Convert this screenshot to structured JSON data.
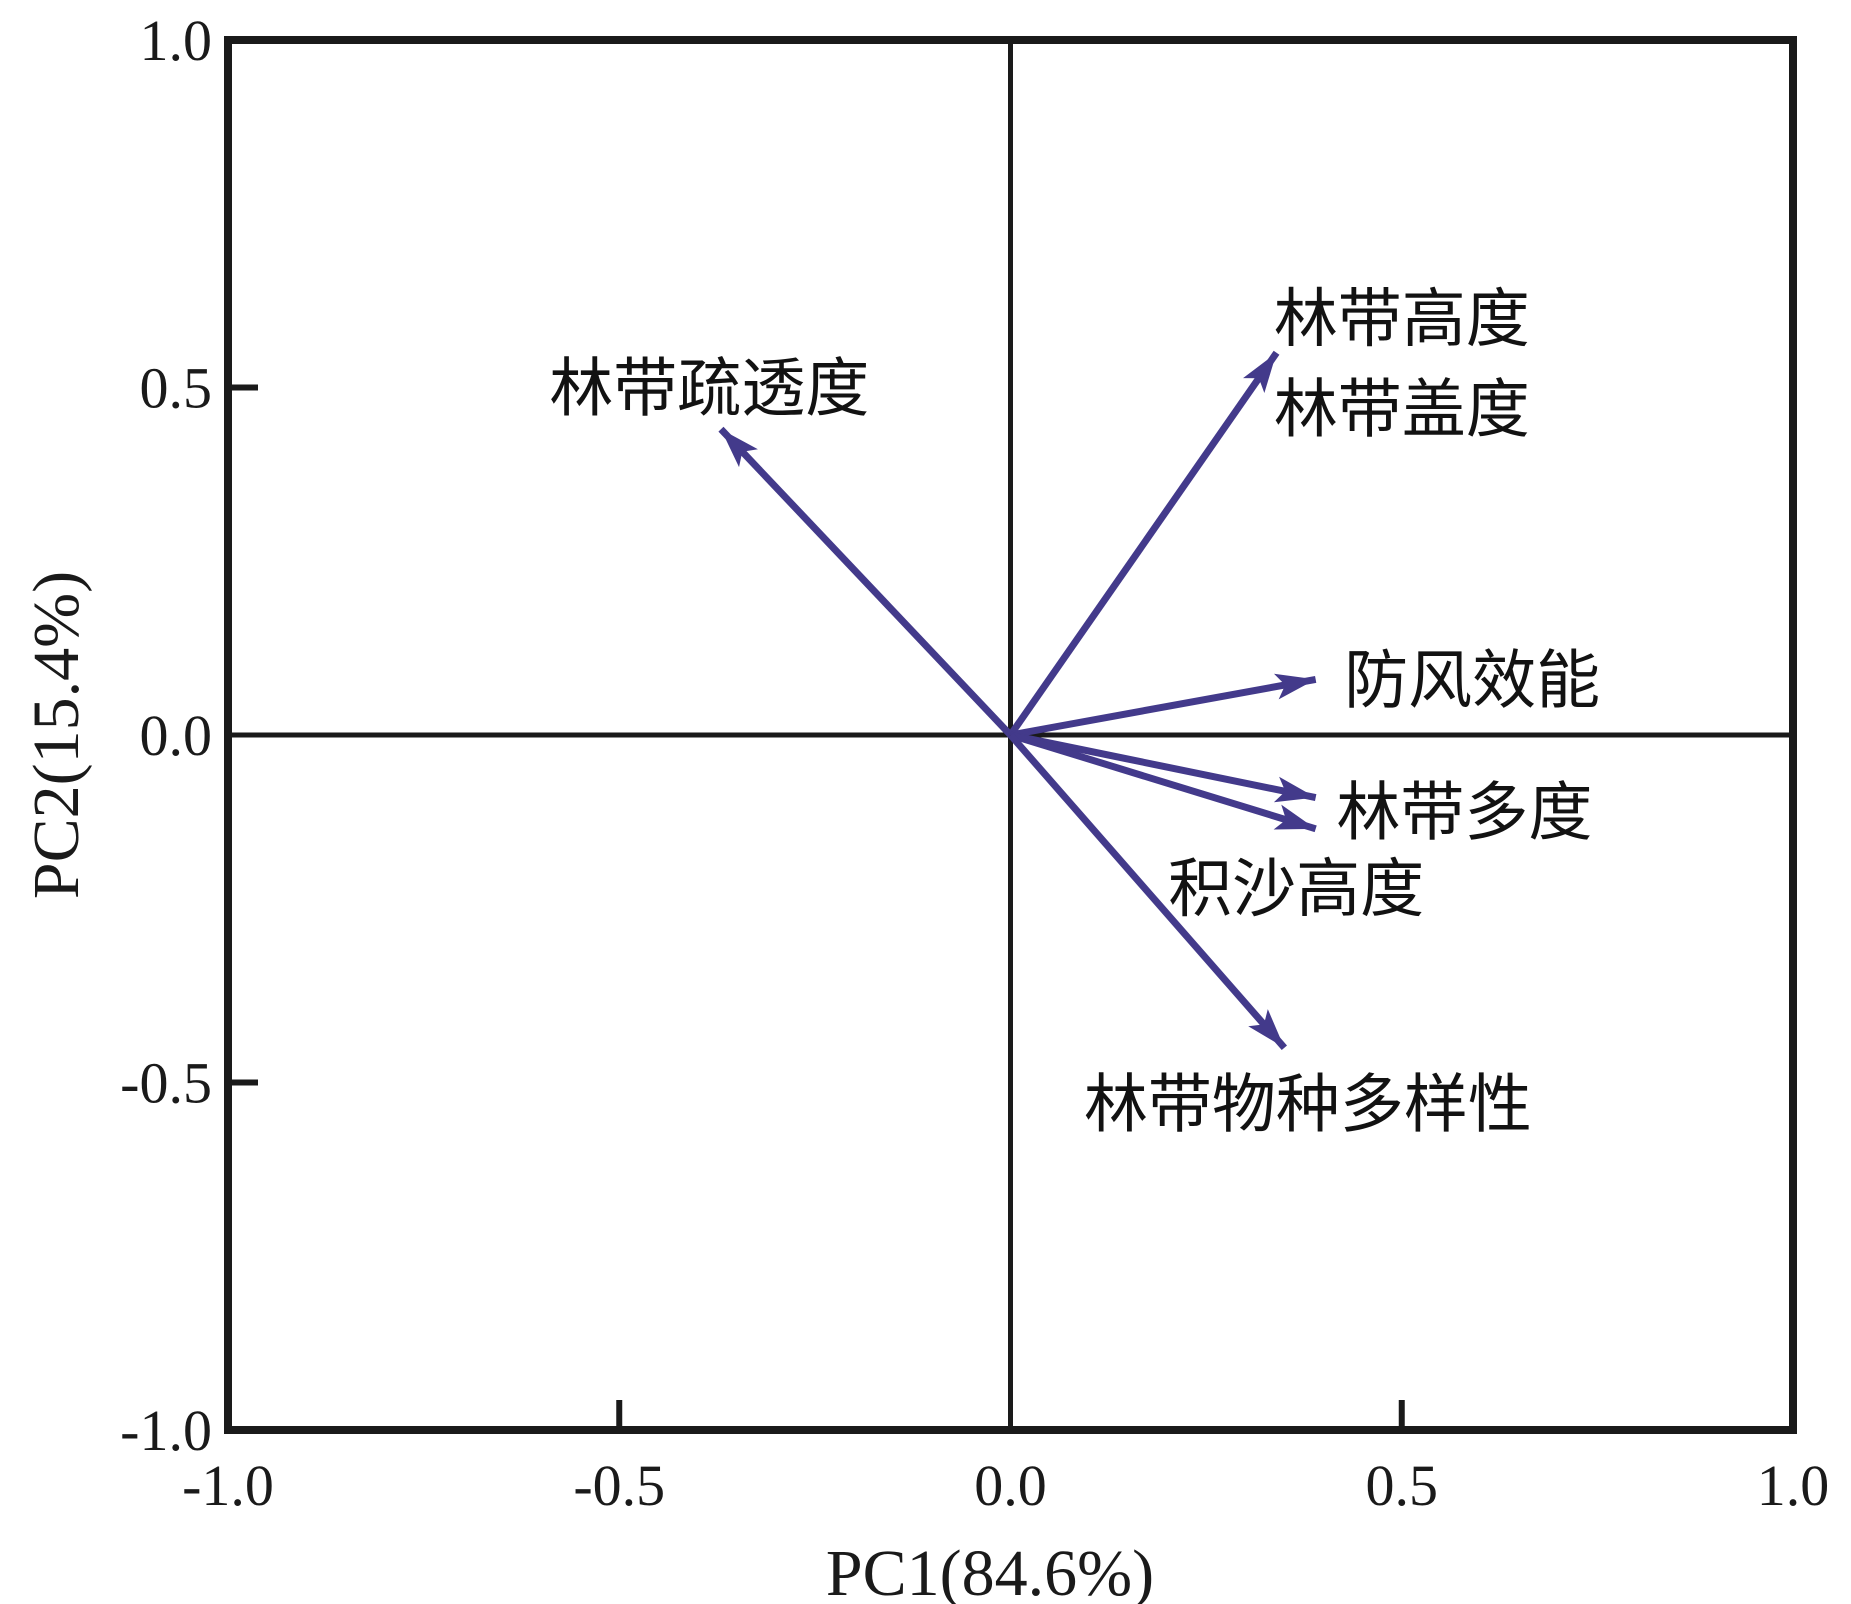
{
  "figure": {
    "background": "#ffffff",
    "colors": {
      "axis": "#1a1a1a",
      "arrow": "#433a8b",
      "text": "#1a1a1a"
    }
  },
  "chart_data": {
    "type": "scatter",
    "subtype": "pca_biplot_loading_vectors",
    "title": "",
    "xlabel": "PC1(84.6%)",
    "ylabel": "PC2(15.4%)",
    "xlim": [
      -1.0,
      1.0
    ],
    "ylim": [
      -1.0,
      1.0
    ],
    "grid": false,
    "legend": "none",
    "x_ticks": [
      {
        "value": -1.0,
        "label": "-1.0"
      },
      {
        "value": -0.5,
        "label": "-0.5"
      },
      {
        "value": 0.0,
        "label": "0.0"
      },
      {
        "value": 0.5,
        "label": "0.5"
      },
      {
        "value": 1.0,
        "label": "1.0"
      }
    ],
    "y_ticks": [
      {
        "value": 1.0,
        "label": "1.0"
      },
      {
        "value": 0.5,
        "label": "0.5"
      },
      {
        "value": 0.0,
        "label": "0.0"
      },
      {
        "value": -0.5,
        "label": "-0.5"
      },
      {
        "value": -1.0,
        "label": "-1.0"
      }
    ],
    "arrows": [
      {
        "id": "belt-porosity",
        "x": -0.37,
        "y": 0.44,
        "labels": [
          "林带疏透度"
        ]
      },
      {
        "id": "belt-height-coverage",
        "x": 0.34,
        "y": 0.55,
        "labels": [
          "林带高度",
          "林带盖度"
        ]
      },
      {
        "id": "windproof-efficiency",
        "x": 0.39,
        "y": 0.08,
        "labels": [
          "防风效能"
        ]
      },
      {
        "id": "belt-abundance",
        "x": 0.39,
        "y": -0.09,
        "labels": [
          "林带多度"
        ]
      },
      {
        "id": "sand-deposit-height",
        "x": 0.39,
        "y": -0.135,
        "labels": [
          "积沙高度"
        ]
      },
      {
        "id": "belt-species-diversity",
        "x": 0.35,
        "y": -0.45,
        "labels": [
          "林带物种多样性"
        ]
      }
    ],
    "annotations": [
      {
        "text": "林带疏透度",
        "x": -0.385,
        "y": 0.5
      },
      {
        "text": "林带高度",
        "x": 0.5,
        "y": 0.6
      },
      {
        "text": "林带盖度",
        "x": 0.5,
        "y": 0.47
      },
      {
        "text": "防风效能",
        "x": 0.59,
        "y": 0.08
      },
      {
        "text": "林带多度",
        "x": 0.58,
        "y": -0.11
      },
      {
        "text": "积沙高度",
        "x": 0.365,
        "y": -0.22
      },
      {
        "text": "林带物种多样性",
        "x": 0.38,
        "y": -0.53
      }
    ]
  }
}
